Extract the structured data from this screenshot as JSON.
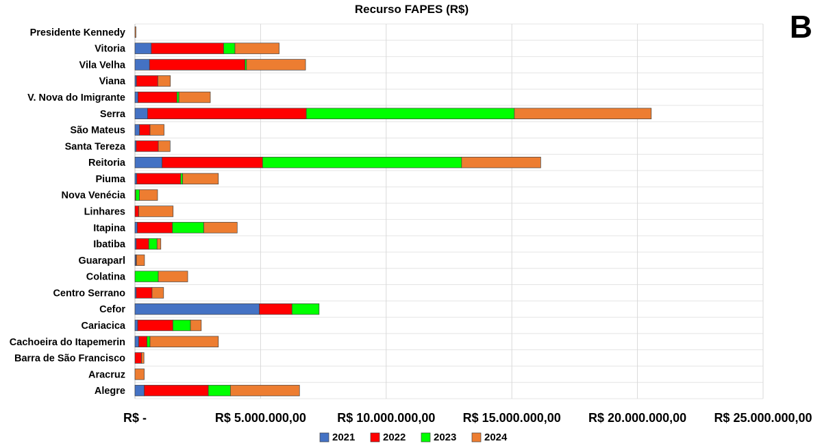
{
  "panel_label": "B",
  "chart_data": {
    "type": "bar",
    "orientation": "horizontal",
    "stacked": true,
    "title": "Recurso FAPES (R$)",
    "xlabel": "",
    "ylabel": "",
    "xlim": [
      0,
      25000000
    ],
    "x_tick_values": [
      0,
      5000000,
      10000000,
      15000000,
      20000000,
      25000000
    ],
    "x_tick_labels": [
      "R$ -",
      "R$ 5.000.000,00",
      "R$ 10.000.000,00",
      "R$ 15.000.000,00",
      "R$ 20.000.000,00",
      "R$ 25.000.000,00"
    ],
    "grid": true,
    "legend_position": "bottom",
    "categories": [
      "Presidente Kennedy",
      "Vitoria",
      "Vila Velha",
      "Viana",
      "V. Nova do Imigrante",
      "Serra",
      "São Mateus",
      "Santa Tereza",
      "Reitoria",
      "Piuma",
      "Nova Venécia",
      "Linhares",
      "Itapina",
      "Ibatiba",
      "Guaraparl",
      "Colatina",
      "Centro Serrano",
      "Cefor",
      "Cariacica",
      "Cachoeira do Itapemerin",
      "Barra de São Francisco",
      "Aracruz",
      "Alegre"
    ],
    "series": [
      {
        "name": "2021",
        "color": "#4472C4",
        "values": [
          0,
          650000,
          580000,
          60000,
          120000,
          500000,
          180000,
          50000,
          1080000,
          70000,
          0,
          0,
          90000,
          50000,
          40000,
          0,
          50000,
          4950000,
          110000,
          150000,
          0,
          0,
          370000
        ]
      },
      {
        "name": "2022",
        "color": "#FF0000",
        "values": [
          0,
          2880000,
          3800000,
          850000,
          1550000,
          6320000,
          420000,
          880000,
          4000000,
          1750000,
          30000,
          150000,
          1400000,
          500000,
          20000,
          0,
          630000,
          1300000,
          1400000,
          330000,
          260000,
          0,
          2550000
        ]
      },
      {
        "name": "2023",
        "color": "#00FF00",
        "values": [
          0,
          450000,
          60000,
          0,
          80000,
          8280000,
          0,
          0,
          7920000,
          80000,
          150000,
          0,
          1250000,
          330000,
          0,
          930000,
          0,
          1080000,
          700000,
          120000,
          0,
          0,
          880000
        ]
      },
      {
        "name": "2024",
        "color": "#ED7D31",
        "values": [
          40000,
          1760000,
          2350000,
          500000,
          1250000,
          5450000,
          560000,
          470000,
          3150000,
          1420000,
          720000,
          1370000,
          1330000,
          150000,
          320000,
          1170000,
          460000,
          0,
          430000,
          2720000,
          100000,
          370000,
          2750000
        ]
      }
    ]
  }
}
